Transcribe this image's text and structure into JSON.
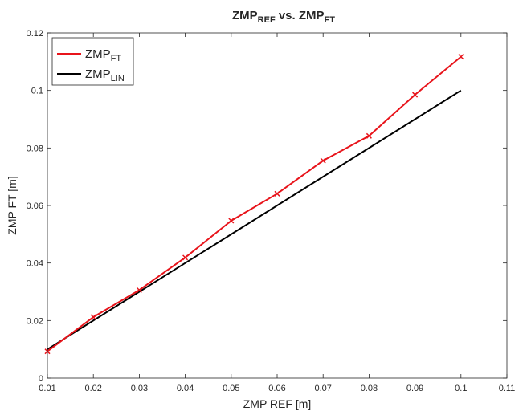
{
  "chart_data": {
    "type": "line",
    "title": {
      "prefix": "ZMP",
      "sub1": "REF",
      "middle": " vs. ZMP",
      "sub2": "FT"
    },
    "xlabel": "ZMP REF [m]",
    "ylabel": "ZMP FT [m]",
    "xlim": [
      0.01,
      0.11
    ],
    "ylim": [
      0,
      0.12
    ],
    "xticks": [
      "0.01",
      "0.02",
      "0.03",
      "0.04",
      "0.05",
      "0.06",
      "0.07",
      "0.08",
      "0.09",
      "0.1",
      "0.11"
    ],
    "yticks": [
      "0",
      "0.02",
      "0.04",
      "0.06",
      "0.08",
      "0.1",
      "0.12"
    ],
    "grid": false,
    "legend_position": "top-left",
    "series": [
      {
        "name": "ZMP",
        "name_sub": "FT",
        "color": "#e8141b",
        "marker": "x",
        "x": [
          0.01,
          0.02,
          0.03,
          0.04,
          0.05,
          0.06,
          0.07,
          0.08,
          0.09,
          0.1
        ],
        "y": [
          0.0093,
          0.0212,
          0.0306,
          0.0419,
          0.0547,
          0.0641,
          0.0756,
          0.0842,
          0.0985,
          0.1117
        ]
      },
      {
        "name": "ZMP",
        "name_sub": "LIN",
        "color": "#000000",
        "marker": "none",
        "x": [
          0.01,
          0.1
        ],
        "y": [
          0.01,
          0.1
        ]
      }
    ]
  }
}
